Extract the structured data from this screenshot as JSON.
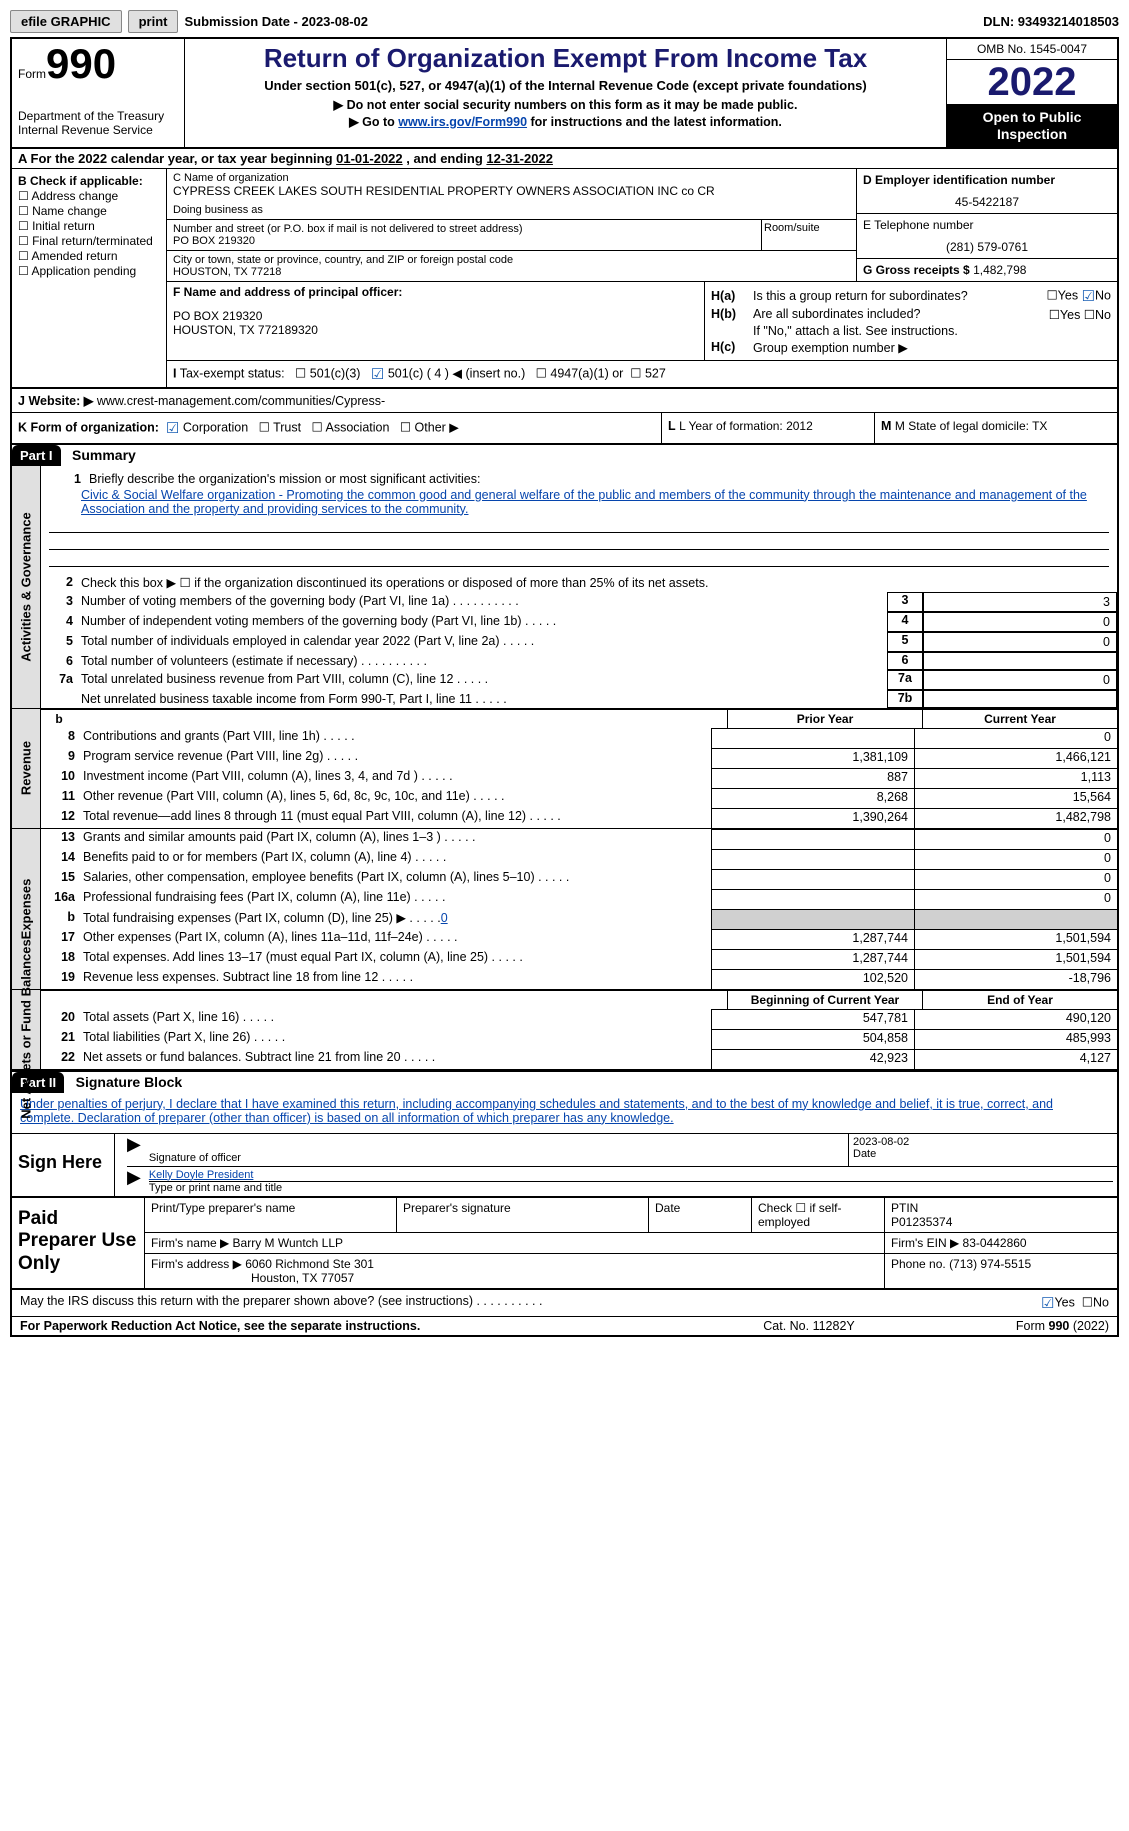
{
  "top": {
    "efile": "efile GRAPHIC",
    "print": "print",
    "submission": "Submission Date - 2023-08-02",
    "dln": "DLN: 93493214018503"
  },
  "header": {
    "formword": "Form",
    "formno": "990",
    "title": "Return of Organization Exempt From Income Tax",
    "sub1": "Under section 501(c), 527, or 4947(a)(1) of the Internal Revenue Code (except private foundations)",
    "sub2": "▶ Do not enter social security numbers on this form as it may be made public.",
    "sub3a": "▶ Go to ",
    "sub3link": "www.irs.gov/Form990",
    "sub3b": " for instructions and the latest information.",
    "dept": "Department of the Treasury",
    "irs": "Internal Revenue Service",
    "omb": "OMB No. 1545-0047",
    "year": "2022",
    "open": "Open to Public Inspection"
  },
  "rowA": {
    "label": "A For the 2022 calendar year, or tax year beginning ",
    "begin": "01-01-2022",
    "mid": "   , and ending ",
    "end": "12-31-2022"
  },
  "colB": {
    "title": "B Check if applicable:",
    "items": [
      "Address change",
      "Name change",
      "Initial return",
      "Final return/terminated",
      "Amended return",
      "Application pending"
    ]
  },
  "colC": {
    "name_lbl": "C Name of organization",
    "name": "CYPRESS CREEK LAKES SOUTH RESIDENTIAL PROPERTY OWNERS ASSOCIATION INC co CR",
    "dba_lbl": "Doing business as",
    "street_lbl": "Number and street (or P.O. box if mail is not delivered to street address)",
    "street": "PO BOX 219320",
    "room_lbl": "Room/suite",
    "city_lbl": "City or town, state or province, country, and ZIP or foreign postal code",
    "city": "HOUSTON, TX  77218"
  },
  "colD": {
    "ein_lbl": "D Employer identification number",
    "ein": "45-5422187",
    "tel_lbl": "E Telephone number",
    "tel": "(281) 579-0761",
    "gross_lbl": "G Gross receipts $",
    "gross": "1,482,798"
  },
  "princ": {
    "f_lbl": "F  Name and address of principal officer:",
    "f_addr1": "PO BOX 219320",
    "f_addr2": "HOUSTON, TX  772189320",
    "ha_lbl": "H(a)",
    "ha_txt": "Is this a group return for subordinates?",
    "hb_lbl": "H(b)",
    "hb_txt": "Are all subordinates included?",
    "hb_note": "If \"No,\" attach a list. See instructions.",
    "hc_lbl": "H(c)",
    "hc_txt": "Group exemption number ▶",
    "yes": "Yes",
    "no": "No"
  },
  "taxex": {
    "i": "I",
    "lbl": "Tax-exempt status:",
    "o1": "501(c)(3)",
    "o2": "501(c) ( 4 ) ◀ (insert no.)",
    "o3": "4947(a)(1) or",
    "o4": "527"
  },
  "website": {
    "j": "J",
    "lbl": "Website: ▶",
    "val": "www.crest-management.com/communities/Cypress-"
  },
  "formorg": {
    "k": "K Form of organization:",
    "corp": "Corporation",
    "trust": "Trust",
    "assoc": "Association",
    "other": "Other ▶",
    "l": "L Year of formation: 2012",
    "m": "M State of legal domicile: TX"
  },
  "part1": {
    "part": "Part I",
    "title": "Summary"
  },
  "summary1": {
    "n1": "1",
    "t1": "Briefly describe the organization's mission or most significant activities:",
    "mission": "Civic & Social Welfare organization - Promoting the common good and general welfare of the public and members of the community through the maintenance and management of the Association and the property and providing services to the community.",
    "n2": "2",
    "t2": "Check this box ▶ ☐  if the organization discontinued its operations or disposed of more than 25% of its net assets.",
    "n3": "3",
    "t3": "Number of voting members of the governing body (Part VI, line 1a)",
    "v3": "3",
    "n4": "4",
    "t4": "Number of independent voting members of the governing body (Part VI, line 1b)",
    "v4": "0",
    "n5": "5",
    "t5": "Total number of individuals employed in calendar year 2022 (Part V, line 2a)",
    "v5": "0",
    "n6": "6",
    "t6": "Total number of volunteers (estimate if necessary)",
    "v6": "",
    "n7a": "7a",
    "t7a": "Total unrelated business revenue from Part VIII, column (C), line 12",
    "v7a": "0",
    "n7b": "",
    "t7b": "Net unrelated business taxable income from Form 990-T, Part I, line 11",
    "b7b": "7b",
    "v7b": ""
  },
  "revhead": {
    "b": "b",
    "prior": "Prior Year",
    "current": "Current Year"
  },
  "revenue": [
    {
      "n": "8",
      "t": "Contributions and grants (Part VIII, line 1h)",
      "p": "",
      "c": "0"
    },
    {
      "n": "9",
      "t": "Program service revenue (Part VIII, line 2g)",
      "p": "1,381,109",
      "c": "1,466,121"
    },
    {
      "n": "10",
      "t": "Investment income (Part VIII, column (A), lines 3, 4, and 7d )",
      "p": "887",
      "c": "1,113"
    },
    {
      "n": "11",
      "t": "Other revenue (Part VIII, column (A), lines 5, 6d, 8c, 9c, 10c, and 11e)",
      "p": "8,268",
      "c": "15,564"
    },
    {
      "n": "12",
      "t": "Total revenue—add lines 8 through 11 (must equal Part VIII, column (A), line 12)",
      "p": "1,390,264",
      "c": "1,482,798"
    }
  ],
  "expenses": [
    {
      "n": "13",
      "t": "Grants and similar amounts paid (Part IX, column (A), lines 1–3 )",
      "p": "",
      "c": "0"
    },
    {
      "n": "14",
      "t": "Benefits paid to or for members (Part IX, column (A), line 4)",
      "p": "",
      "c": "0"
    },
    {
      "n": "15",
      "t": "Salaries, other compensation, employee benefits (Part IX, column (A), lines 5–10)",
      "p": "",
      "c": "0"
    },
    {
      "n": "16a",
      "t": "Professional fundraising fees (Part IX, column (A), line 11e)",
      "p": "",
      "c": "0"
    },
    {
      "n": "b",
      "t": "Total fundraising expenses (Part IX, column (D), line 25) ▶",
      "link": "0",
      "grey": true
    },
    {
      "n": "17",
      "t": "Other expenses (Part IX, column (A), lines 11a–11d, 11f–24e)",
      "p": "1,287,744",
      "c": "1,501,594"
    },
    {
      "n": "18",
      "t": "Total expenses. Add lines 13–17 (must equal Part IX, column (A), line 25)",
      "p": "1,287,744",
      "c": "1,501,594"
    },
    {
      "n": "19",
      "t": "Revenue less expenses. Subtract line 18 from line 12",
      "p": "102,520",
      "c": "-18,796"
    }
  ],
  "nethead": {
    "begin": "Beginning of Current Year",
    "end": "End of Year"
  },
  "netassets": [
    {
      "n": "20",
      "t": "Total assets (Part X, line 16)",
      "p": "547,781",
      "c": "490,120"
    },
    {
      "n": "21",
      "t": "Total liabilities (Part X, line 26)",
      "p": "504,858",
      "c": "485,993"
    },
    {
      "n": "22",
      "t": "Net assets or fund balances. Subtract line 21 from line 20",
      "p": "42,923",
      "c": "4,127"
    }
  ],
  "part2": {
    "part": "Part II",
    "title": "Signature Block"
  },
  "sigtext": "Under penalties of perjury, I declare that I have examined this return, including accompanying schedules and statements, and to the best of my knowledge and belief, it is true, correct, and complete. Declaration of preparer (other than officer) is based on all information of which preparer has any knowledge.",
  "signhere": {
    "lbl": "Sign Here",
    "sig_lbl": "Signature of officer",
    "date_lbl": "Date",
    "date": "2023-08-02",
    "name": "Kelly Doyle  President",
    "name_lbl": "Type or print name and title"
  },
  "paid": {
    "lbl": "Paid Preparer Use Only",
    "h1": "Print/Type preparer's name",
    "h2": "Preparer's signature",
    "h3": "Date",
    "h4": "Check ☐ if self-employed",
    "h5_lbl": "PTIN",
    "h5": "P01235374",
    "firm_lbl": "Firm's name    ▶",
    "firm": "Barry M Wuntch LLP",
    "ein_lbl": "Firm's EIN ▶",
    "ein": "83-0442860",
    "addr_lbl": "Firm's address ▶",
    "addr1": "6060 Richmond Ste 301",
    "addr2": "Houston, TX  77057",
    "phone_lbl": "Phone no.",
    "phone": "(713) 974-5515"
  },
  "irsq": {
    "txt": "May the IRS discuss this return with the preparer shown above? (see instructions)",
    "yes": "Yes",
    "no": "No"
  },
  "foot": {
    "l": "For Paperwork Reduction Act Notice, see the separate instructions.",
    "m": "Cat. No. 11282Y",
    "r": "Form 990 (2022)"
  },
  "dots": " .   .   .   .   .   .   .   .   .   .",
  "dots_short": " .   .   .   .   .",
  "vtabs": {
    "ag": "Activities & Governance",
    "rev": "Revenue",
    "exp": "Expenses",
    "net": "Net Assets or Fund Balances"
  }
}
